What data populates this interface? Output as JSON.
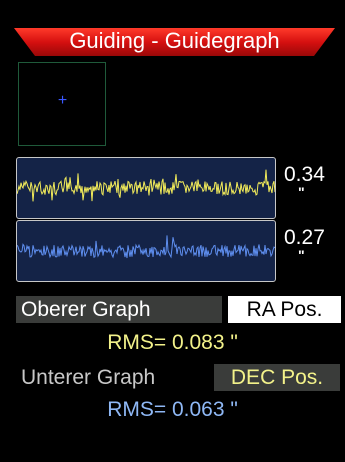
{
  "header": {
    "title": "Guiding - Guidegraph",
    "bar_color": "#d01010"
  },
  "star_view": {
    "crosshair_glyph": "+"
  },
  "graphs": {
    "top": {
      "scale": "0.34",
      "unit": "\"",
      "color": "#f3ec5a"
    },
    "bottom": {
      "scale": "0.27",
      "unit": "\"",
      "color": "#5f8ff0"
    }
  },
  "controls": {
    "top_label": "Oberer Graph",
    "top_selection": "RA  Pos.",
    "top_rms": "RMS= 0.083 \"",
    "bottom_label": "Unterer Graph",
    "bottom_selection": "DEC Pos.",
    "bottom_rms": "RMS= 0.063 \""
  }
}
